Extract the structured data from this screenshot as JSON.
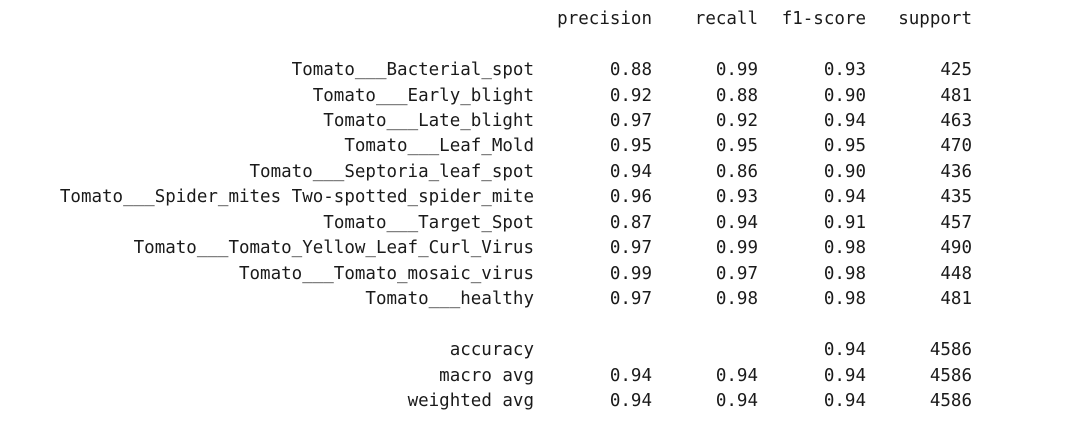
{
  "header": {
    "precision": "precision",
    "recall": "recall",
    "f1_score": "f1-score",
    "support": "support"
  },
  "rows": [
    {
      "label": "Tomato___Bacterial_spot",
      "precision": "0.88",
      "recall": "0.99",
      "f1": "0.93",
      "support": "425"
    },
    {
      "label": "Tomato___Early_blight",
      "precision": "0.92",
      "recall": "0.88",
      "f1": "0.90",
      "support": "481"
    },
    {
      "label": "Tomato___Late_blight",
      "precision": "0.97",
      "recall": "0.92",
      "f1": "0.94",
      "support": "463"
    },
    {
      "label": "Tomato___Leaf_Mold",
      "precision": "0.95",
      "recall": "0.95",
      "f1": "0.95",
      "support": "470"
    },
    {
      "label": "Tomato___Septoria_leaf_spot",
      "precision": "0.94",
      "recall": "0.86",
      "f1": "0.90",
      "support": "436"
    },
    {
      "label": "Tomato___Spider_mites Two-spotted_spider_mite",
      "precision": "0.96",
      "recall": "0.93",
      "f1": "0.94",
      "support": "435"
    },
    {
      "label": "Tomato___Target_Spot",
      "precision": "0.87",
      "recall": "0.94",
      "f1": "0.91",
      "support": "457"
    },
    {
      "label": "Tomato___Tomato_Yellow_Leaf_Curl_Virus",
      "precision": "0.97",
      "recall": "0.99",
      "f1": "0.98",
      "support": "490"
    },
    {
      "label": "Tomato___Tomato_mosaic_virus",
      "precision": "0.99",
      "recall": "0.97",
      "f1": "0.98",
      "support": "448"
    },
    {
      "label": "Tomato___healthy",
      "precision": "0.97",
      "recall": "0.98",
      "f1": "0.98",
      "support": "481"
    }
  ],
  "summary": {
    "accuracy": {
      "label": "accuracy",
      "f1": "0.94",
      "support": "4586"
    },
    "macro_avg": {
      "label": "macro avg",
      "precision": "0.94",
      "recall": "0.94",
      "f1": "0.94",
      "support": "4586"
    },
    "weighted_avg": {
      "label": "weighted avg",
      "precision": "0.94",
      "recall": "0.94",
      "f1": "0.94",
      "support": "4586"
    }
  }
}
